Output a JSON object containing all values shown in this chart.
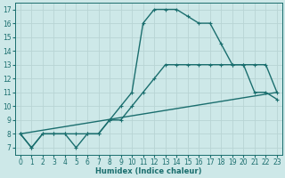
{
  "xlabel": "Humidex (Indice chaleur)",
  "xlim": [
    -0.5,
    23.5
  ],
  "ylim": [
    6.5,
    17.5
  ],
  "xticks": [
    0,
    1,
    2,
    3,
    4,
    5,
    6,
    7,
    8,
    9,
    10,
    11,
    12,
    13,
    14,
    15,
    16,
    17,
    18,
    19,
    20,
    21,
    22,
    23
  ],
  "yticks": [
    7,
    8,
    9,
    10,
    11,
    12,
    13,
    14,
    15,
    16,
    17
  ],
  "bg_color": "#cde8e8",
  "grid_color": "#b8d4d4",
  "line_color": "#1a6e6e",
  "line1_x": [
    0,
    1,
    2,
    3,
    4,
    5,
    6,
    7,
    8,
    9,
    10,
    11,
    12,
    13,
    14,
    15,
    16,
    17,
    18,
    19,
    20,
    21,
    22,
    23
  ],
  "line1_y": [
    8,
    7,
    8,
    8,
    8,
    7,
    8,
    8,
    9,
    10,
    11,
    16,
    17,
    17,
    17,
    16.5,
    16,
    16,
    14.5,
    13,
    13,
    11,
    11,
    10.5
  ],
  "line2_x": [
    0,
    1,
    2,
    3,
    4,
    5,
    6,
    7,
    8,
    9,
    10,
    11,
    12,
    13,
    14,
    15,
    16,
    17,
    18,
    19,
    20,
    21,
    22,
    23
  ],
  "line2_y": [
    8,
    7,
    8,
    8,
    8,
    8,
    8,
    8,
    9,
    9,
    10,
    11,
    12,
    13,
    13,
    13,
    13,
    13,
    13,
    13,
    13,
    13,
    13,
    11
  ],
  "line3_x": [
    0,
    23
  ],
  "line3_y": [
    8,
    11
  ],
  "markersize": 3,
  "linewidth": 1.0,
  "axis_fontsize": 6,
  "tick_fontsize": 5.5
}
